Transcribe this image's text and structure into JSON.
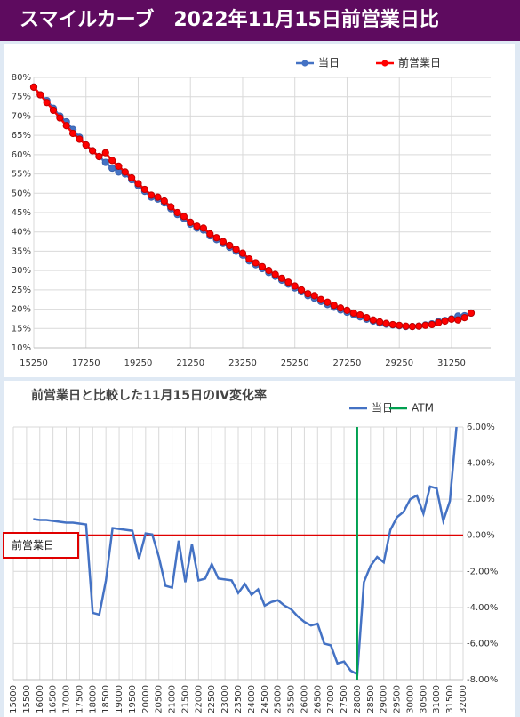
{
  "header": {
    "title": "スマイルカーブ　2022年11月15日前営業日比"
  },
  "chart_data": [
    {
      "type": "line",
      "markers": true,
      "grid": true,
      "legend": "top-right",
      "x": [
        15250,
        15500,
        15750,
        16000,
        16250,
        16500,
        16750,
        17000,
        17250,
        17500,
        17750,
        18000,
        18250,
        18500,
        18750,
        19000,
        19250,
        19500,
        19750,
        20000,
        20250,
        20500,
        20750,
        21000,
        21250,
        21500,
        21750,
        22000,
        22250,
        22500,
        22750,
        23000,
        23250,
        23500,
        23750,
        24000,
        24250,
        24500,
        24750,
        25000,
        25250,
        25500,
        25750,
        26000,
        26250,
        26500,
        26750,
        27000,
        27250,
        27500,
        27750,
        28000,
        28250,
        28500,
        28750,
        29000,
        29250,
        29500,
        29750,
        30000,
        30250,
        30500,
        30750,
        31000,
        31250,
        31500,
        31750,
        32000
      ],
      "xlim": [
        15250,
        32750
      ],
      "xticks": [
        15250,
        17250,
        19250,
        21250,
        23250,
        25250,
        27250,
        29250,
        31250
      ],
      "ylim": [
        10,
        80
      ],
      "yticks": [
        {
          "value": 10,
          "label": "10%"
        },
        {
          "value": 15,
          "label": "15%"
        },
        {
          "value": 20,
          "label": "20%"
        },
        {
          "value": 25,
          "label": "25%"
        },
        {
          "value": 30,
          "label": "30%"
        },
        {
          "value": 35,
          "label": "35%"
        },
        {
          "value": 40,
          "label": "40%"
        },
        {
          "value": 45,
          "label": "45%"
        },
        {
          "value": 50,
          "label": "50%"
        },
        {
          "value": 55,
          "label": "55%"
        },
        {
          "value": 60,
          "label": "60%"
        },
        {
          "value": 65,
          "label": "65%"
        },
        {
          "value": 70,
          "label": "70%"
        },
        {
          "value": 75,
          "label": "75%"
        },
        {
          "value": 80,
          "label": "80%"
        }
      ],
      "series": [
        {
          "name": "当日",
          "color": "#4472c4",
          "values": [
            77.5,
            75.5,
            74,
            72,
            70,
            68.5,
            66.5,
            64.5,
            62.5,
            61,
            59.5,
            58,
            56.5,
            55.5,
            55,
            53.5,
            52,
            50.5,
            49,
            48.5,
            47.5,
            46,
            44.5,
            43.5,
            42,
            41,
            40.5,
            39,
            38,
            37,
            36,
            35,
            34,
            32.5,
            31.5,
            30.5,
            29.5,
            28.5,
            27.5,
            26.5,
            25.5,
            24.5,
            23.5,
            22.8,
            22,
            21.2,
            20.5,
            19.8,
            19.2,
            18.6,
            18,
            17.4,
            16.9,
            16.4,
            16.1,
            15.9,
            15.7,
            15.5,
            15.5,
            15.6,
            15.9,
            16.2,
            16.8,
            17.1,
            17.5,
            18.2,
            18.3,
            19
          ]
        },
        {
          "name": "前営業日",
          "color": "#ff0000",
          "values": [
            77.5,
            75.5,
            73.5,
            71.5,
            69.5,
            67.5,
            65.5,
            64,
            62.5,
            61,
            59.5,
            60.5,
            58.5,
            57,
            55.5,
            54,
            52.5,
            51,
            49.5,
            49,
            48,
            46.5,
            45,
            44,
            42.5,
            41.5,
            41,
            39.5,
            38.5,
            37.5,
            36.5,
            35.5,
            34.5,
            33,
            32,
            31,
            30,
            29,
            28,
            27,
            26,
            25,
            24,
            23.5,
            22.5,
            21.8,
            21,
            20.3,
            19.7,
            19,
            18.5,
            17.8,
            17.2,
            16.7,
            16.3,
            16,
            15.8,
            15.6,
            15.5,
            15.6,
            15.8,
            16,
            16.5,
            16.9,
            17.4,
            17.2,
            17.8,
            19
          ]
        }
      ]
    },
    {
      "type": "line",
      "markers": false,
      "grid": true,
      "legend": "top-right",
      "title": "前営業日と比較した11月15日のIV変化率",
      "x": [
        15750,
        16000,
        16250,
        16500,
        16750,
        17000,
        17250,
        17500,
        17750,
        18000,
        18250,
        18500,
        18750,
        19000,
        19250,
        19500,
        19750,
        20000,
        20250,
        20500,
        20750,
        21000,
        21250,
        21500,
        21750,
        22000,
        22250,
        22500,
        22750,
        23000,
        23250,
        23500,
        23750,
        24000,
        24250,
        24500,
        24750,
        25000,
        25250,
        25500,
        25750,
        26000,
        26250,
        26500,
        26750,
        27000,
        27250,
        27500,
        27750,
        28000,
        28250,
        28500,
        28750,
        29000,
        29250,
        29500,
        29750,
        30000,
        30250,
        30500,
        30750,
        31000,
        31250,
        31500,
        31750
      ],
      "xlim": [
        15000,
        32000
      ],
      "xticks": [
        15000,
        15500,
        16000,
        16500,
        17000,
        17500,
        18000,
        18500,
        19000,
        19500,
        20000,
        20500,
        21000,
        21500,
        22000,
        22500,
        23000,
        23500,
        24000,
        24500,
        25000,
        25500,
        26000,
        26500,
        27000,
        27500,
        28000,
        28500,
        29000,
        29500,
        30000,
        30500,
        31000,
        31500,
        32000
      ],
      "ylim": [
        -8,
        6
      ],
      "yticks": [
        {
          "value": -8,
          "label": "-8.00%"
        },
        {
          "value": -6,
          "label": "-6.00%"
        },
        {
          "value": -4,
          "label": "-4.00%"
        },
        {
          "value": -2,
          "label": "-2.00%"
        },
        {
          "value": 0,
          "label": "0.00%"
        },
        {
          "value": 2,
          "label": "2.00%"
        },
        {
          "value": 4,
          "label": "4.00%"
        },
        {
          "value": 6,
          "label": "6.00%"
        }
      ],
      "series": [
        {
          "name": "当日",
          "color": "#4472c4",
          "values": [
            0.9,
            0.85,
            0.85,
            0.8,
            0.75,
            0.7,
            0.7,
            0.65,
            0.6,
            -4.3,
            -4.4,
            -2.5,
            0.4,
            0.35,
            0.3,
            0.25,
            -1.3,
            0.1,
            0.05,
            -1.2,
            -2.8,
            -2.9,
            -0.3,
            -2.6,
            -0.5,
            -2.5,
            -2.4,
            -1.6,
            -2.4,
            -2.45,
            -2.5,
            -3.2,
            -2.7,
            -3.3,
            -3,
            -3.9,
            -3.7,
            -3.6,
            -3.9,
            -4.1,
            -4.5,
            -4.8,
            -5,
            -4.9,
            -6,
            -6.1,
            -7.1,
            -7,
            -7.5,
            -7.7,
            -2.6,
            -1.7,
            -1.2,
            -1.5,
            0.3,
            1,
            1.3,
            2,
            2.2,
            1.2,
            2.7,
            2.6,
            0.8,
            1.9,
            6
          ]
        }
      ],
      "atm": {
        "name": "ATM",
        "x": 28000,
        "color": "#00a050"
      },
      "reference_line": {
        "label": "前営業日",
        "value": 0,
        "color": "#e00000"
      }
    }
  ]
}
